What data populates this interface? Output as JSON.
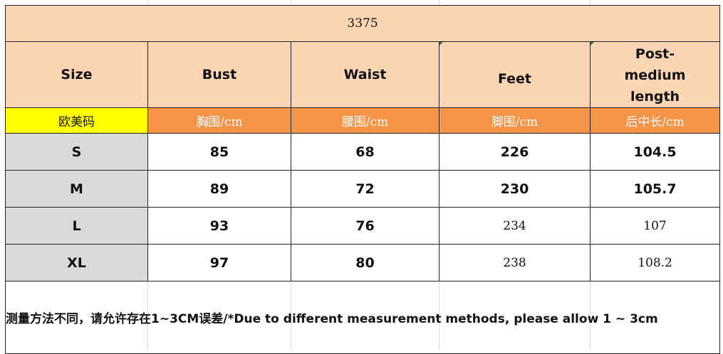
{
  "title": "3375",
  "headers": [
    "Size",
    "Bust",
    "Waist",
    "Feet",
    "Post-medium length"
  ],
  "units": [
    "欧美码",
    "胸围/cm",
    "腰围/cm",
    "脚围/cm",
    "后中长/cm"
  ],
  "rows": [
    [
      "S",
      "85",
      "68",
      "226",
      "104.5"
    ],
    [
      "M",
      "89",
      "72",
      "230",
      "105.7"
    ],
    [
      "L",
      "93",
      "76",
      "234",
      "107"
    ],
    [
      "XL",
      "97",
      "80",
      "238",
      "108.2"
    ]
  ],
  "note": "测量方法不同，请允许存在1~3CM误差/*Due to different measurement methods, please allow 1 ~ 3cm",
  "colors": {
    "header_bg": "#fcd5b4",
    "unit_bg": "#f59347",
    "size_label_bg": "#ffff00",
    "size_cell_bg": "#d9d9d9"
  }
}
